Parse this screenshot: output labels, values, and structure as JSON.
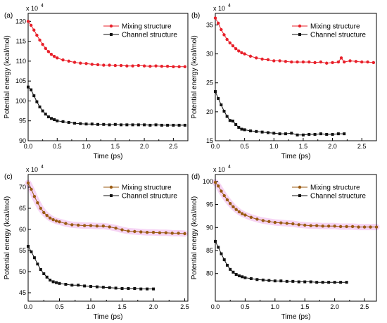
{
  "figure": {
    "background": "#ffffff"
  },
  "chart_data": [
    {
      "type": "line",
      "panel_label": "(a)",
      "exponent_label": "x 10",
      "exponent_power": "4",
      "xlabel": "Time (ps)",
      "ylabel": "Potential energy (kcal/mol)",
      "xlim": [
        0,
        2.75
      ],
      "ylim": [
        90,
        122
      ],
      "xticks": [
        0.0,
        0.5,
        1.0,
        1.5,
        2.0,
        2.5
      ],
      "xtick_labels": [
        "0.0",
        "0.5",
        "1.0",
        "1.5",
        "2.0",
        "2.5"
      ],
      "yticks": [
        90,
        95,
        100,
        105,
        110,
        115,
        120
      ],
      "ytick_labels": [
        "90",
        "95",
        "100",
        "105",
        "110",
        "115",
        "120"
      ],
      "legend_position": "top-right",
      "series": [
        {
          "name": "Mixing structure",
          "color": "#e8202a",
          "marker": "circle",
          "band": false,
          "x": [
            0.0,
            0.05,
            0.1,
            0.15,
            0.2,
            0.25,
            0.3,
            0.35,
            0.4,
            0.45,
            0.5,
            0.6,
            0.7,
            0.8,
            0.9,
            1.0,
            1.1,
            1.2,
            1.3,
            1.4,
            1.5,
            1.6,
            1.7,
            1.8,
            1.9,
            2.0,
            2.1,
            2.2,
            2.3,
            2.4,
            2.5,
            2.6,
            2.7
          ],
          "y": [
            120,
            119,
            117.8,
            116.5,
            115.3,
            114.2,
            113.2,
            112.4,
            111.7,
            111.2,
            110.8,
            110.3,
            110.0,
            109.7,
            109.5,
            109.4,
            109.2,
            109.1,
            109.0,
            109.0,
            108.9,
            108.9,
            108.8,
            108.8,
            108.9,
            108.8,
            108.7,
            108.8,
            108.7,
            108.7,
            108.6,
            108.6,
            108.6
          ]
        },
        {
          "name": "Channel structure",
          "color": "#111111",
          "marker": "square",
          "band": false,
          "x": [
            0.0,
            0.05,
            0.1,
            0.15,
            0.2,
            0.25,
            0.3,
            0.35,
            0.4,
            0.45,
            0.5,
            0.6,
            0.7,
            0.8,
            0.9,
            1.0,
            1.1,
            1.2,
            1.3,
            1.4,
            1.5,
            1.6,
            1.7,
            1.8,
            1.9,
            2.0,
            2.1,
            2.2,
            2.3,
            2.4,
            2.5,
            2.6,
            2.7
          ],
          "y": [
            103.5,
            102.8,
            101.3,
            99.8,
            98.5,
            97.5,
            96.7,
            96.0,
            95.6,
            95.3,
            95.0,
            94.8,
            94.6,
            94.4,
            94.3,
            94.2,
            94.2,
            94.1,
            94.1,
            94.0,
            94.1,
            94.0,
            94.0,
            94.0,
            94.0,
            94.0,
            93.9,
            94.0,
            93.9,
            93.9,
            93.9,
            93.9,
            93.9
          ]
        }
      ]
    },
    {
      "type": "line",
      "panel_label": "(b)",
      "exponent_label": "x 10",
      "exponent_power": "4",
      "xlabel": "Time (ps)",
      "ylabel": "Potential energy (kcal/mol)",
      "xlim": [
        0,
        2.75
      ],
      "ylim": [
        15,
        37
      ],
      "xticks": [
        0.0,
        0.5,
        1.0,
        1.5,
        2.0,
        2.5
      ],
      "xtick_labels": [
        "0.0",
        "0.5",
        "1.0",
        "1.5",
        "2.0",
        "2.5"
      ],
      "yticks": [
        15,
        20,
        25,
        30,
        35
      ],
      "ytick_labels": [
        "15",
        "20",
        "25",
        "30",
        "35"
      ],
      "legend_position": "top-right",
      "series": [
        {
          "name": "Mixing structure",
          "color": "#e8202a",
          "marker": "circle",
          "band": false,
          "x": [
            0.0,
            0.05,
            0.1,
            0.15,
            0.2,
            0.25,
            0.3,
            0.35,
            0.4,
            0.45,
            0.5,
            0.6,
            0.7,
            0.8,
            0.9,
            1.0,
            1.1,
            1.2,
            1.3,
            1.4,
            1.5,
            1.6,
            1.7,
            1.8,
            1.9,
            2.0,
            2.1,
            2.15,
            2.2,
            2.3,
            2.4,
            2.5,
            2.6,
            2.7
          ],
          "y": [
            36.2,
            35.3,
            34.2,
            33.3,
            32.5,
            31.9,
            31.4,
            30.9,
            30.5,
            30.2,
            30.0,
            29.6,
            29.3,
            29.1,
            29.0,
            28.8,
            28.8,
            28.7,
            28.6,
            28.6,
            28.6,
            28.6,
            28.5,
            28.6,
            28.4,
            28.5,
            28.6,
            29.3,
            28.6,
            28.8,
            28.7,
            28.6,
            28.6,
            28.5
          ]
        },
        {
          "name": "Channel structure",
          "color": "#111111",
          "marker": "square",
          "band": false,
          "x": [
            0.0,
            0.05,
            0.1,
            0.15,
            0.2,
            0.25,
            0.3,
            0.35,
            0.4,
            0.45,
            0.5,
            0.6,
            0.7,
            0.8,
            0.9,
            1.0,
            1.1,
            1.2,
            1.3,
            1.4,
            1.5,
            1.6,
            1.7,
            1.8,
            1.9,
            2.0,
            2.1,
            2.2
          ],
          "y": [
            23.5,
            22.3,
            21.2,
            20.1,
            19.2,
            18.5,
            18.4,
            17.8,
            17.3,
            17.0,
            16.9,
            16.7,
            16.6,
            16.5,
            16.4,
            16.3,
            16.2,
            16.2,
            16.3,
            16.0,
            16.0,
            16.1,
            16.1,
            16.2,
            16.1,
            16.1,
            16.2,
            16.2
          ]
        }
      ]
    },
    {
      "type": "line",
      "panel_label": "(c)",
      "exponent_label": "x 10",
      "exponent_power": "4",
      "xlabel": "Time (ps)",
      "ylabel": "Potential energy (kcal/mol)",
      "xlim": [
        0,
        2.55
      ],
      "ylim": [
        43,
        73
      ],
      "xticks": [
        0.0,
        0.5,
        1.0,
        1.5,
        2.0,
        2.5
      ],
      "xtick_labels": [
        "0.0",
        "0.5",
        "1.0",
        "1.5",
        "2.0",
        "2.5"
      ],
      "yticks": [
        45,
        50,
        55,
        60,
        65,
        70
      ],
      "ytick_labels": [
        "45",
        "50",
        "55",
        "60",
        "65",
        "70"
      ],
      "legend_position": "top-right",
      "series": [
        {
          "name": "Mixing structure",
          "color": "#9a5a12",
          "marker": "circle",
          "band": true,
          "band_color": "#f3c6f0",
          "x": [
            0.0,
            0.05,
            0.1,
            0.15,
            0.2,
            0.25,
            0.3,
            0.35,
            0.4,
            0.45,
            0.5,
            0.6,
            0.7,
            0.8,
            0.9,
            1.0,
            1.1,
            1.2,
            1.3,
            1.4,
            1.5,
            1.6,
            1.7,
            1.8,
            1.9,
            2.0,
            2.1,
            2.2,
            2.3,
            2.4,
            2.5
          ],
          "y": [
            71.0,
            69.5,
            67.8,
            66.3,
            65.0,
            64.0,
            63.3,
            62.7,
            62.3,
            62.0,
            61.8,
            61.4,
            61.1,
            61.0,
            60.9,
            60.9,
            60.8,
            60.8,
            60.6,
            60.3,
            59.9,
            59.6,
            59.5,
            59.4,
            59.3,
            59.3,
            59.2,
            59.2,
            59.1,
            59.1,
            59.0
          ]
        },
        {
          "name": "Channel structure",
          "color": "#111111",
          "marker": "square",
          "band": false,
          "x": [
            0.0,
            0.05,
            0.1,
            0.15,
            0.2,
            0.25,
            0.3,
            0.35,
            0.4,
            0.45,
            0.5,
            0.6,
            0.7,
            0.8,
            0.9,
            1.0,
            1.1,
            1.2,
            1.3,
            1.4,
            1.5,
            1.6,
            1.7,
            1.8,
            1.9,
            2.0
          ],
          "y": [
            56.0,
            54.7,
            53.3,
            51.8,
            50.5,
            49.5,
            48.7,
            48.0,
            47.6,
            47.4,
            47.2,
            47.0,
            46.8,
            46.8,
            46.6,
            46.5,
            46.4,
            46.3,
            46.2,
            46.1,
            46.0,
            46.0,
            46.0,
            45.9,
            45.9,
            45.9
          ]
        }
      ]
    },
    {
      "type": "line",
      "panel_label": "(d)",
      "exponent_label": "x 10",
      "exponent_power": "4",
      "xlabel": "Time (ps)",
      "ylabel": "Potential energy (kcal/mol)",
      "xlim": [
        0,
        2.7
      ],
      "ylim": [
        74,
        101.5
      ],
      "xticks": [
        0.0,
        0.5,
        1.0,
        1.5,
        2.0,
        2.5
      ],
      "xtick_labels": [
        "0.0",
        "0.5",
        "1.0",
        "1.5",
        "2.0",
        "2.5"
      ],
      "yticks": [
        80,
        85,
        90,
        95,
        100
      ],
      "ytick_labels": [
        "80",
        "85",
        "90",
        "95",
        "100"
      ],
      "legend_position": "top-right",
      "series": [
        {
          "name": "Mixing structure",
          "color": "#9a5a12",
          "marker": "circle",
          "band": true,
          "band_color": "#f3c6f0",
          "x": [
            0.0,
            0.05,
            0.1,
            0.15,
            0.2,
            0.25,
            0.3,
            0.35,
            0.4,
            0.45,
            0.5,
            0.6,
            0.7,
            0.8,
            0.9,
            1.0,
            1.1,
            1.2,
            1.3,
            1.4,
            1.5,
            1.6,
            1.7,
            1.8,
            1.9,
            2.0,
            2.1,
            2.2,
            2.3,
            2.4,
            2.5,
            2.6,
            2.7
          ],
          "y": [
            99.8,
            99.0,
            97.9,
            96.9,
            96.0,
            95.2,
            94.5,
            93.9,
            93.4,
            93.0,
            92.7,
            92.2,
            91.8,
            91.5,
            91.3,
            91.1,
            91.0,
            90.9,
            90.8,
            90.6,
            90.5,
            90.4,
            90.4,
            90.3,
            90.3,
            90.3,
            90.2,
            90.2,
            90.2,
            90.1,
            90.1,
            90.1,
            90.1
          ]
        },
        {
          "name": "Channel structure",
          "color": "#111111",
          "marker": "square",
          "band": false,
          "x": [
            0.0,
            0.05,
            0.1,
            0.15,
            0.2,
            0.25,
            0.3,
            0.35,
            0.4,
            0.45,
            0.5,
            0.6,
            0.7,
            0.8,
            0.9,
            1.0,
            1.1,
            1.2,
            1.3,
            1.4,
            1.5,
            1.6,
            1.7,
            1.8,
            1.9,
            2.0,
            2.1,
            2.2
          ],
          "y": [
            87.0,
            85.7,
            84.3,
            83.0,
            81.8,
            80.9,
            80.3,
            79.8,
            79.5,
            79.3,
            79.1,
            78.9,
            78.7,
            78.6,
            78.5,
            78.4,
            78.4,
            78.3,
            78.3,
            78.2,
            78.2,
            78.2,
            78.1,
            78.1,
            78.1,
            78.1,
            78.1,
            78.1
          ]
        }
      ]
    }
  ]
}
